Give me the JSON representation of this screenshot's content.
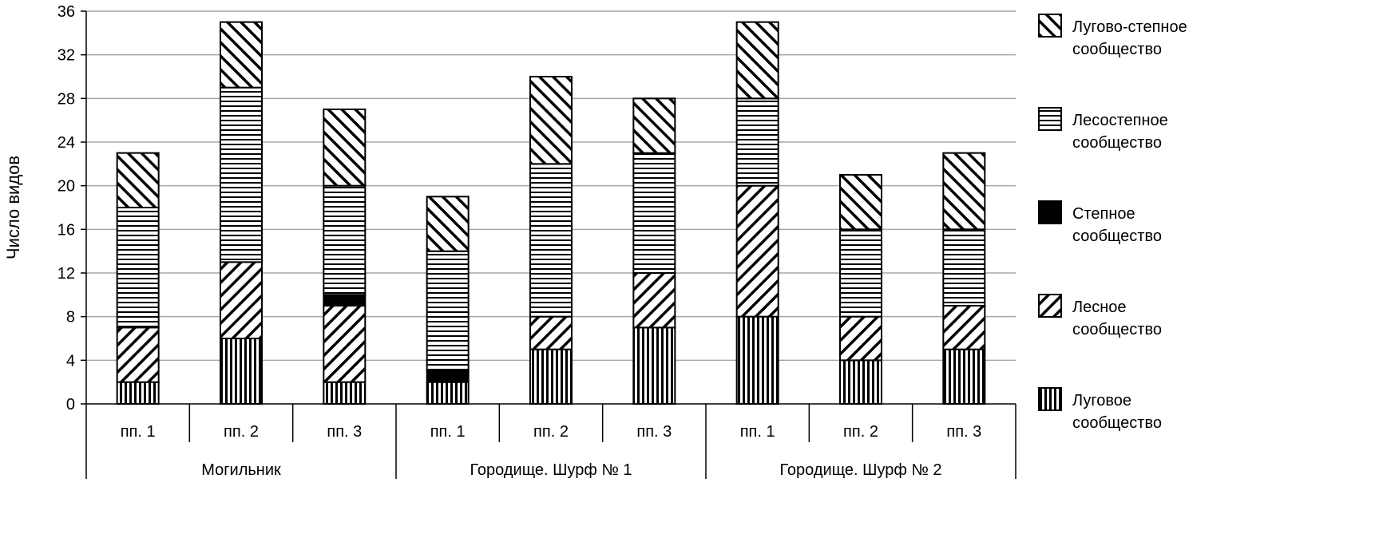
{
  "chart_data": {
    "type": "bar",
    "stacked": true,
    "ylabel": "Число видов",
    "ylim": [
      0,
      36
    ],
    "yticks": [
      0,
      4,
      8,
      12,
      16,
      20,
      24,
      28,
      32,
      36
    ],
    "grid": true,
    "legend_position": "right",
    "groups": [
      {
        "label": "Могильник",
        "categories": [
          "пп. 1",
          "пп. 2",
          "пп. 3"
        ]
      },
      {
        "label": "Городище. Шурф № 1",
        "categories": [
          "пп. 1",
          "пп. 2",
          "пп. 3"
        ]
      },
      {
        "label": "Городище. Шурф № 2",
        "categories": [
          "пп. 1",
          "пп. 2",
          "пп. 3"
        ]
      }
    ],
    "series": [
      {
        "name": "Луговое сообщество",
        "legend": [
          "Луговое",
          "сообщество"
        ],
        "pattern": "vertical",
        "values": [
          2,
          6,
          2,
          2,
          5,
          7,
          8,
          4,
          5
        ]
      },
      {
        "name": "Лесное сообщество",
        "legend": [
          "Лесное",
          "сообщество"
        ],
        "pattern": "diag-down",
        "values": [
          5,
          7,
          7,
          0,
          3,
          5,
          12,
          4,
          4
        ]
      },
      {
        "name": "Степное сообщество",
        "legend": [
          "Степное",
          "сообщество"
        ],
        "pattern": "solid",
        "values": [
          0,
          0,
          1,
          1,
          0,
          0,
          0,
          0,
          0
        ]
      },
      {
        "name": "Лесостепное сообщество",
        "legend": [
          "Лесостепное",
          "сообщество"
        ],
        "pattern": "horizontal",
        "values": [
          11,
          16,
          10,
          11,
          14,
          11,
          8,
          8,
          7
        ]
      },
      {
        "name": "Лугово-степное сообщество",
        "legend": [
          "Лугово-степное",
          "сообщество"
        ],
        "pattern": "diag-up",
        "values": [
          5,
          6,
          7,
          5,
          8,
          5,
          7,
          5,
          7
        ]
      }
    ]
  }
}
